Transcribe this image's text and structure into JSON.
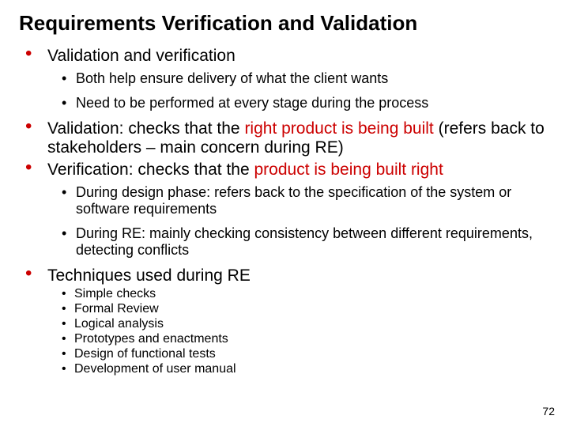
{
  "colors": {
    "bullet_red": "#cc0000",
    "text_black": "#000000",
    "highlight_red": "#cc0000",
    "background": "#ffffff"
  },
  "typography": {
    "title_fontsize": 26,
    "level1_fontsize": 21,
    "level2_fontsize": 18,
    "level3_fontsize": 16,
    "pagenum_fontsize": 14,
    "title_weight": "bold",
    "body_weight": "normal",
    "font_family": "Arial, Helvetica, sans-serif"
  },
  "title": "Requirements Verification and Validation",
  "page_number": "72",
  "bullets": [
    {
      "text": "Validation and verification",
      "sub": [
        {
          "text": "Both help ensure delivery of what the client wants"
        },
        {
          "text": "Need to be performed at every stage during the process"
        }
      ]
    },
    {
      "pre": "Validation: checks that the ",
      "hl": "right product is being built",
      "post": " (refers back to stakeholders – main concern during RE)"
    },
    {
      "pre": "Verification: checks that the ",
      "hl": "product is being built right",
      "post": "",
      "sub": [
        {
          "text": "During design phase: refers back to the specification of the system or software requirements"
        },
        {
          "text": "During RE: mainly checking consistency between different requirements, detecting conflicts"
        }
      ]
    },
    {
      "text": "Techniques used during RE",
      "sub3": [
        "Simple checks",
        "Formal Review",
        "Logical analysis",
        "Prototypes and enactments",
        "Design of functional tests",
        "Development of user manual"
      ]
    }
  ]
}
